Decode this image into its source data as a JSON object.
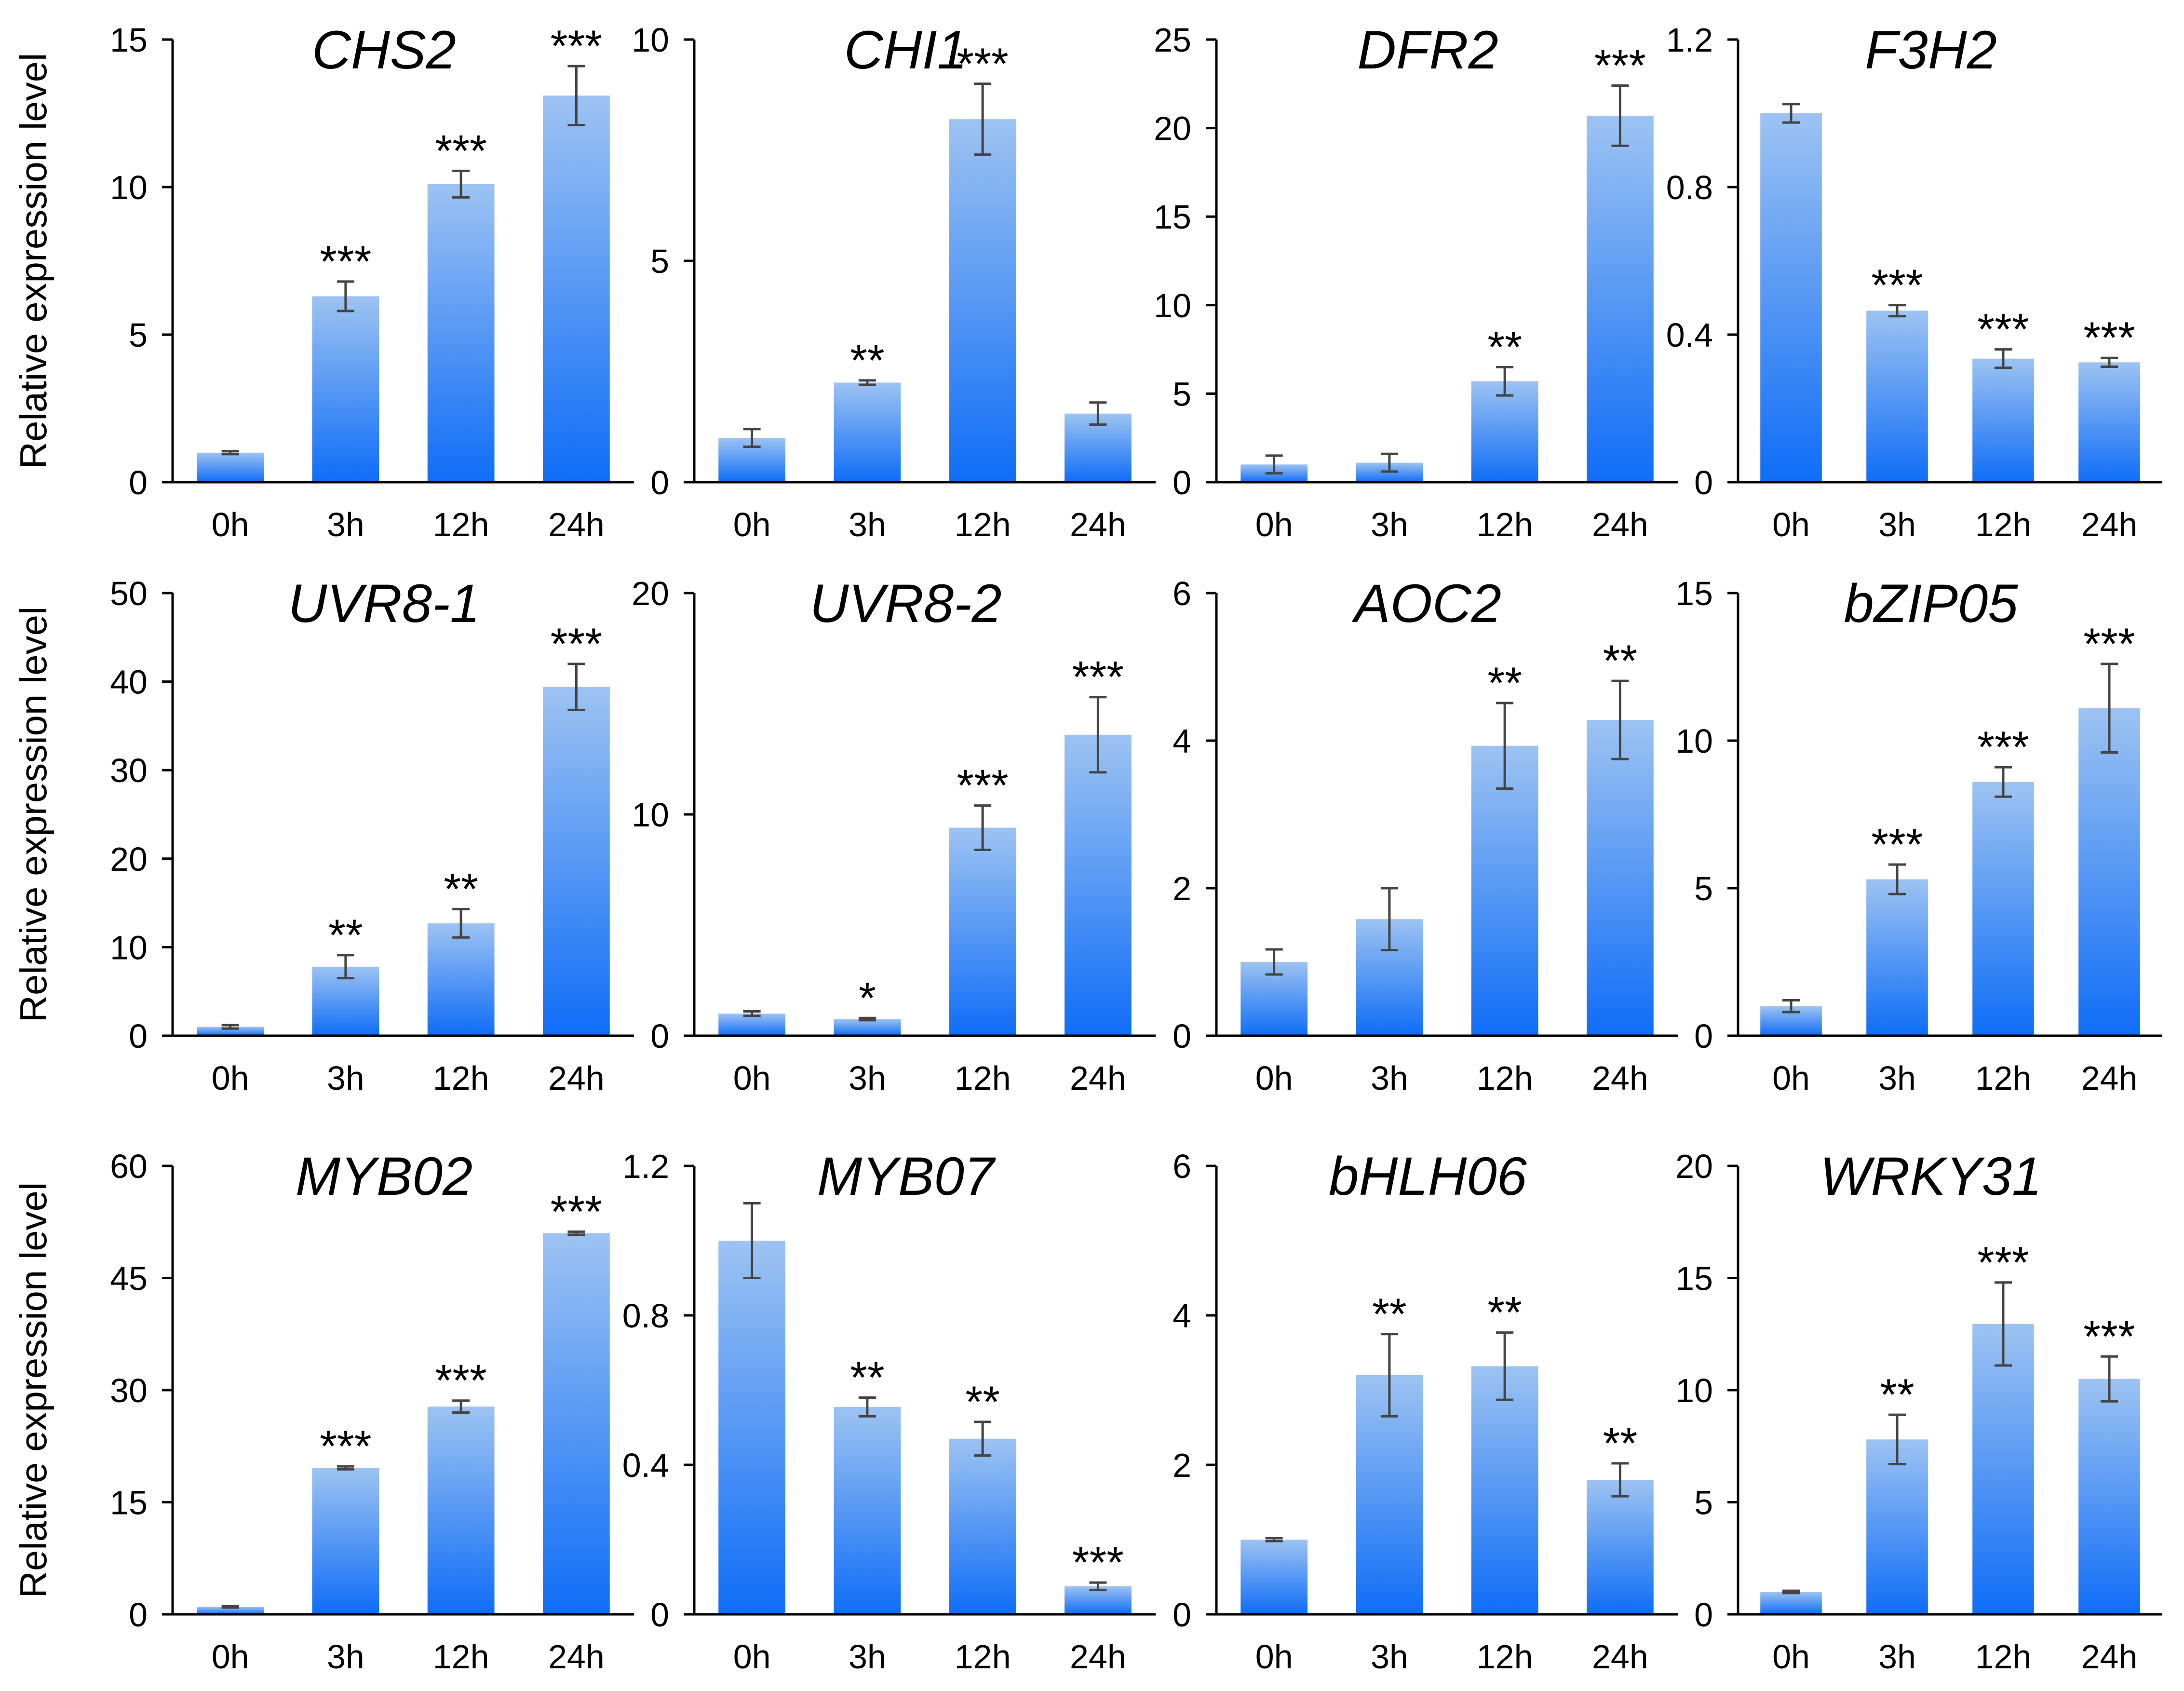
{
  "figure": {
    "y_axis_label": "Relative expression level",
    "bar_gradient_top": "#9dc3f2",
    "bar_gradient_bottom": "#0f6df7",
    "axis_color": "#000000",
    "error_color": "#444444"
  },
  "chart_data": [
    {
      "type": "bar",
      "title": "CHS2",
      "categories": [
        "0h",
        "3h",
        "12h",
        "24h"
      ],
      "values": [
        1.0,
        6.3,
        10.1,
        13.1
      ],
      "errors": [
        0.05,
        0.5,
        0.45,
        1.0
      ],
      "significance": [
        "",
        "***",
        "***",
        "***"
      ],
      "ylim": [
        0,
        15
      ],
      "yticks": [
        0,
        5,
        10,
        15
      ],
      "yticklabels": [
        "0",
        "5",
        "10",
        "15"
      ],
      "ylabel": "Relative expression level",
      "xlabel": ""
    },
    {
      "type": "bar",
      "title": "CHI1",
      "categories": [
        "0h",
        "3h",
        "12h",
        "24h"
      ],
      "values": [
        1.0,
        2.25,
        8.2,
        1.55
      ],
      "errors": [
        0.2,
        0.05,
        0.8,
        0.25
      ],
      "significance": [
        "",
        "**",
        "***",
        ""
      ],
      "ylim": [
        0,
        10
      ],
      "yticks": [
        0,
        5,
        10
      ],
      "yticklabels": [
        "0",
        "5",
        "10"
      ],
      "ylabel": "",
      "xlabel": ""
    },
    {
      "type": "bar",
      "title": "DFR2",
      "categories": [
        "0h",
        "3h",
        "12h",
        "24h"
      ],
      "values": [
        1.0,
        1.1,
        5.7,
        20.7
      ],
      "errors": [
        0.5,
        0.5,
        0.8,
        1.7
      ],
      "significance": [
        "",
        "",
        "**",
        "***"
      ],
      "ylim": [
        0,
        25
      ],
      "yticks": [
        0,
        5,
        10,
        15,
        20,
        25
      ],
      "yticklabels": [
        "0",
        "5",
        "10",
        "15",
        "20",
        "25"
      ],
      "ylabel": "",
      "xlabel": ""
    },
    {
      "type": "bar",
      "title": "F3H2",
      "categories": [
        "0h",
        "3h",
        "12h",
        "24h"
      ],
      "values": [
        1.0,
        0.465,
        0.335,
        0.325
      ],
      "errors": [
        0.025,
        0.015,
        0.025,
        0.012
      ],
      "significance": [
        "",
        "***",
        "***",
        "***"
      ],
      "ylim": [
        0,
        1.2
      ],
      "yticks": [
        0,
        0.4,
        0.8,
        1.2
      ],
      "yticklabels": [
        "0",
        "0.4",
        "0.8",
        "1.2"
      ],
      "ylabel": "",
      "xlabel": ""
    },
    {
      "type": "bar",
      "title": "UVR8-1",
      "categories": [
        "0h",
        "3h",
        "12h",
        "24h"
      ],
      "values": [
        1.0,
        7.8,
        12.7,
        39.4
      ],
      "errors": [
        0.2,
        1.3,
        1.6,
        2.6
      ],
      "significance": [
        "",
        "**",
        "**",
        "***"
      ],
      "ylim": [
        0,
        50
      ],
      "yticks": [
        0,
        10,
        20,
        30,
        40,
        50
      ],
      "yticklabels": [
        "0",
        "10",
        "20",
        "30",
        "40",
        "50"
      ],
      "ylabel": "Relative expression level",
      "xlabel": ""
    },
    {
      "type": "bar",
      "title": "UVR8-2",
      "categories": [
        "0h",
        "3h",
        "12h",
        "24h"
      ],
      "values": [
        1.0,
        0.75,
        9.4,
        13.6
      ],
      "errors": [
        0.1,
        0.05,
        1.0,
        1.7
      ],
      "significance": [
        "",
        "*",
        "***",
        "***"
      ],
      "ylim": [
        0,
        20
      ],
      "yticks": [
        0,
        10,
        20
      ],
      "yticklabels": [
        "0",
        "10",
        "20"
      ],
      "ylabel": "",
      "xlabel": ""
    },
    {
      "type": "bar",
      "title": "AOC2",
      "categories": [
        "0h",
        "3h",
        "12h",
        "24h"
      ],
      "values": [
        1.0,
        1.58,
        3.93,
        4.28
      ],
      "errors": [
        0.17,
        0.42,
        0.58,
        0.53
      ],
      "significance": [
        "",
        "",
        "**",
        "**"
      ],
      "ylim": [
        0,
        6
      ],
      "yticks": [
        0,
        2,
        4,
        6
      ],
      "yticklabels": [
        "0",
        "2",
        "4",
        "6"
      ],
      "ylabel": "",
      "xlabel": ""
    },
    {
      "type": "bar",
      "title": "bZIP05",
      "categories": [
        "0h",
        "3h",
        "12h",
        "24h"
      ],
      "values": [
        1.0,
        5.3,
        8.6,
        11.1
      ],
      "errors": [
        0.2,
        0.5,
        0.5,
        1.5
      ],
      "significance": [
        "",
        "***",
        "***",
        "***"
      ],
      "ylim": [
        0,
        15
      ],
      "yticks": [
        0,
        5,
        10,
        15
      ],
      "yticklabels": [
        "0",
        "5",
        "10",
        "15"
      ],
      "ylabel": "",
      "xlabel": ""
    },
    {
      "type": "bar",
      "title": "MYB02",
      "categories": [
        "0h",
        "3h",
        "12h",
        "24h"
      ],
      "values": [
        1.0,
        19.6,
        27.8,
        51.0
      ],
      "errors": [
        0.1,
        0.2,
        0.8,
        0.2
      ],
      "significance": [
        "",
        "***",
        "***",
        "***"
      ],
      "ylim": [
        0,
        60
      ],
      "yticks": [
        0,
        15,
        30,
        45,
        60
      ],
      "yticklabels": [
        "0",
        "15",
        "30",
        "45",
        "60"
      ],
      "ylabel": "Relative expression level",
      "xlabel": ""
    },
    {
      "type": "bar",
      "title": "MYB07",
      "categories": [
        "0h",
        "3h",
        "12h",
        "24h"
      ],
      "values": [
        1.0,
        0.555,
        0.47,
        0.075
      ],
      "errors": [
        0.1,
        0.025,
        0.045,
        0.01
      ],
      "significance": [
        "",
        "**",
        "**",
        "***"
      ],
      "ylim": [
        0,
        1.2
      ],
      "yticks": [
        0,
        0.4,
        0.8,
        1.2
      ],
      "yticklabels": [
        "0",
        "0.4",
        "0.8",
        "1.2"
      ],
      "ylabel": "",
      "xlabel": ""
    },
    {
      "type": "bar",
      "title": "bHLH06",
      "categories": [
        "0h",
        "3h",
        "12h",
        "24h"
      ],
      "values": [
        1.0,
        3.2,
        3.32,
        1.8
      ],
      "errors": [
        0.02,
        0.55,
        0.45,
        0.22
      ],
      "significance": [
        "",
        "**",
        "**",
        "**"
      ],
      "ylim": [
        0,
        6
      ],
      "yticks": [
        0,
        2,
        4,
        6
      ],
      "yticklabels": [
        "0",
        "2",
        "4",
        "6"
      ],
      "ylabel": "",
      "xlabel": ""
    },
    {
      "type": "bar",
      "title": "WRKY31",
      "categories": [
        "0h",
        "3h",
        "12h",
        "24h"
      ],
      "values": [
        1.0,
        7.8,
        12.95,
        10.5
      ],
      "errors": [
        0.05,
        1.1,
        1.85,
        1.0
      ],
      "significance": [
        "",
        "**",
        "***",
        "***"
      ],
      "ylim": [
        0,
        20
      ],
      "yticks": [
        0,
        5,
        10,
        15,
        20
      ],
      "yticklabels": [
        "0",
        "5",
        "10",
        "15",
        "20"
      ],
      "ylabel": "",
      "xlabel": ""
    }
  ]
}
